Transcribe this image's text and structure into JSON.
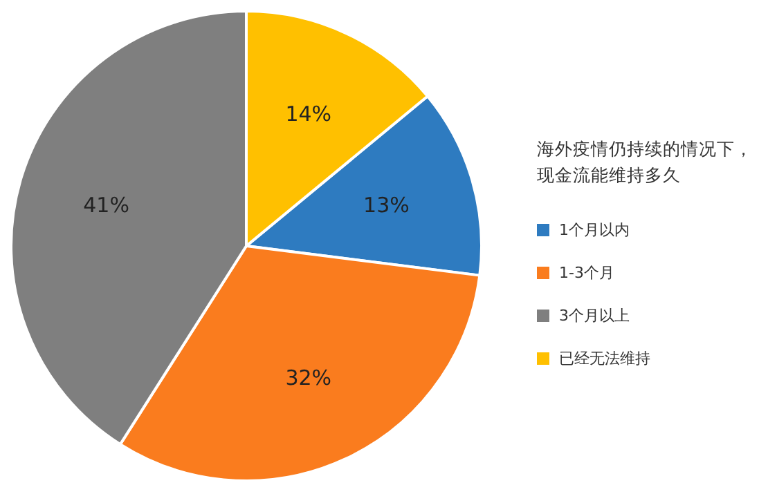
{
  "chart_data": {
    "type": "pie",
    "legend_title": "海外疫情仍持续的情况下，现金流能维持多久",
    "categories": [
      "1个月以内",
      "1-3个月",
      "3个月以上",
      "已经无法维持"
    ],
    "values": [
      13,
      32,
      41,
      14
    ],
    "colors": [
      "#2e7bc0",
      "#fa7c1e",
      "#7f7f7f",
      "#ffc000"
    ],
    "value_labels": [
      "13%",
      "32%",
      "41%",
      "14%"
    ],
    "legend": "right"
  }
}
